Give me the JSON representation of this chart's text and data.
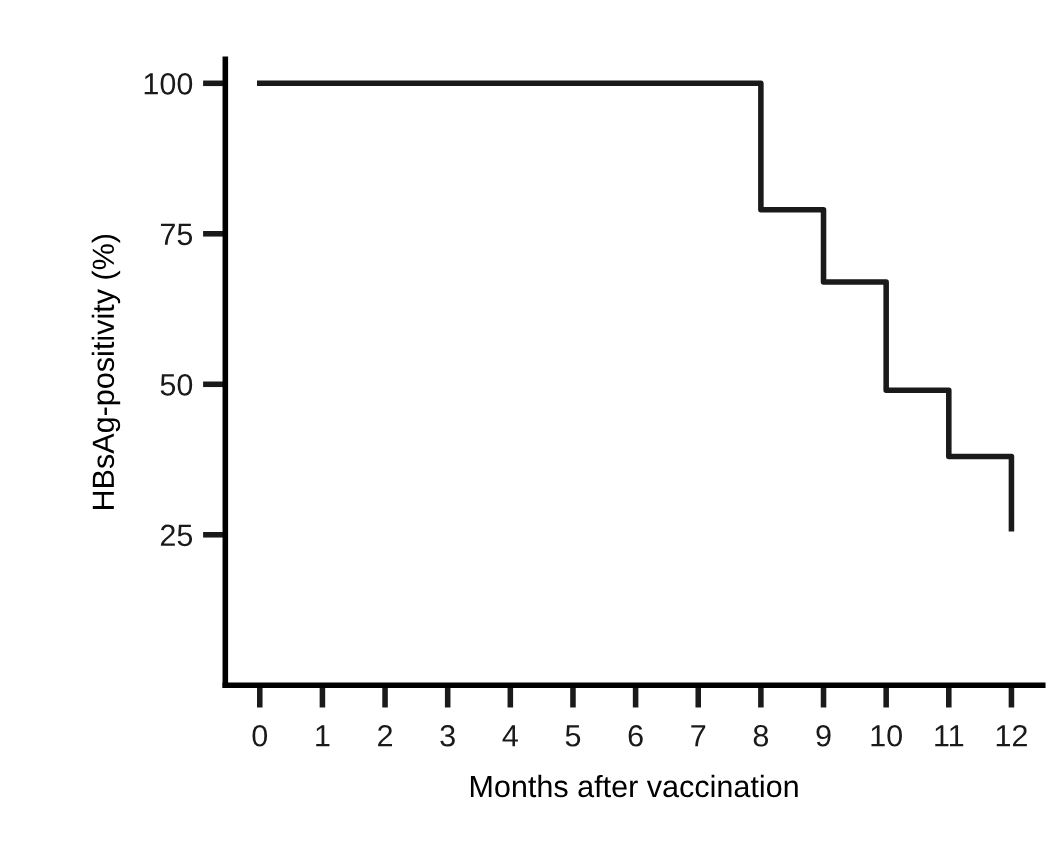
{
  "chart_data": {
    "type": "step",
    "xlabel": "Months after vaccination",
    "ylabel": "HBsAg-positivity (%)",
    "categories": [
      "0",
      "1",
      "2",
      "3",
      "4",
      "5",
      "6",
      "7",
      "8",
      "9",
      "10",
      "11",
      "12"
    ],
    "series": [
      {
        "color": "#1a1a1a",
        "values": [
          100,
          100,
          100,
          100,
          100,
          100,
          100,
          100,
          79,
          67,
          49,
          38,
          26
        ]
      }
    ],
    "ylim": [
      0,
      104
    ],
    "yticks": [
      25,
      50,
      75,
      100
    ],
    "grid": false,
    "legend": false
  }
}
